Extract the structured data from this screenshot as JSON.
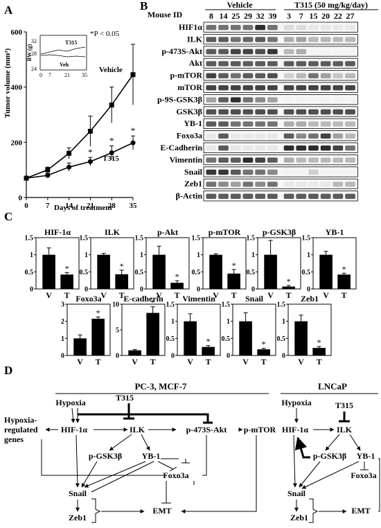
{
  "panels": {
    "A": "A",
    "B": "B",
    "C": "C",
    "D": "D"
  },
  "panel_a": {
    "ylabel": "Tumor volume (mm³)",
    "xlabel": "Days of treatment",
    "pvalue": "*P < 0.05",
    "vehicle_label": "Vehicle",
    "t315_label": "T315",
    "inset": {
      "ylabel": "BW (g)",
      "t315_label": "T315",
      "veh_label": "Veh",
      "y_ticks": [
        "24",
        "28",
        "32"
      ],
      "x_ticks": [
        "0",
        "7",
        "21",
        "35"
      ]
    }
  },
  "chart_data": [
    {
      "type": "line",
      "x": [
        0,
        7,
        14,
        21,
        28,
        35
      ],
      "xlim": [
        0,
        35
      ],
      "ylim": [
        0,
        600
      ],
      "x_ticks": [
        "0",
        "7",
        "14",
        "21",
        "28",
        "35"
      ],
      "y_ticks": [
        "0",
        "200",
        "400",
        "600"
      ],
      "xlabel": "Days of treatment",
      "ylabel": "Tumor volume (mm³)",
      "series": [
        {
          "name": "Vehicle",
          "marker": "square",
          "values": [
            70,
            100,
            160,
            240,
            335,
            445
          ],
          "errors": [
            5,
            10,
            20,
            55,
            65,
            110
          ]
        },
        {
          "name": "T315",
          "marker": "circle",
          "values": [
            70,
            80,
            110,
            130,
            162,
            198
          ],
          "errors": [
            5,
            8,
            15,
            15,
            25,
            25
          ]
        }
      ],
      "significant_x": [
        21,
        28,
        35
      ]
    },
    {
      "type": "bar",
      "categories": [
        "V",
        "T"
      ],
      "ylim": [
        0,
        1.5
      ],
      "y_ticks": [
        "0",
        "0.5",
        "1",
        "1.5"
      ],
      "charts": [
        {
          "title": "HIF-1α",
          "values": [
            1.0,
            0.42
          ],
          "errors": [
            0.2,
            0.06
          ],
          "significant": "T"
        },
        {
          "title": "ILK",
          "values": [
            1.0,
            0.43
          ],
          "errors": [
            0.04,
            0.12
          ],
          "significant": "T"
        },
        {
          "title": "p-Akt",
          "values": [
            1.0,
            0.18
          ],
          "errors": [
            0.25,
            0.06
          ],
          "significant": "T"
        },
        {
          "title": "p-mTOR",
          "values": [
            1.0,
            0.45
          ],
          "errors": [
            0.03,
            0.12
          ],
          "significant": "T"
        },
        {
          "title": "p-GSK3β",
          "values": [
            1.0,
            0.07
          ],
          "errors": [
            0.42,
            0.03
          ],
          "significant": "T"
        },
        {
          "title": "YB-1",
          "values": [
            1.0,
            0.42
          ],
          "errors": [
            0.1,
            0.04
          ],
          "significant": "T"
        }
      ]
    },
    {
      "type": "bar",
      "categories": [
        "V",
        "T"
      ],
      "charts": [
        {
          "title": "Foxo3a",
          "values": [
            1.0,
            2.15
          ],
          "errors": [
            0.2,
            0.1
          ],
          "ylim": [
            0,
            3
          ],
          "y_ticks": [
            "0",
            "1",
            "2",
            "3"
          ],
          "significant": "T"
        },
        {
          "title": "E-cadherin",
          "values": [
            1.0,
            8.3
          ],
          "errors": [
            0.15,
            1.2
          ],
          "ylim": [
            0,
            10
          ],
          "y_ticks": [
            "0",
            "5",
            "10"
          ],
          "significant": "T"
        },
        {
          "title": "Vimentin",
          "values": [
            1.0,
            0.25
          ],
          "errors": [
            0.22,
            0.04
          ],
          "ylim": [
            0,
            1.5
          ],
          "y_ticks": [
            "0",
            "0.5",
            "1",
            "1.5"
          ],
          "significant": "T"
        },
        {
          "title": "Snail",
          "values": [
            1.0,
            0.18
          ],
          "errors": [
            0.25,
            0.03
          ],
          "ylim": [
            0,
            1.5
          ],
          "y_ticks": [
            "0",
            "0.5",
            "1",
            "1.5"
          ],
          "significant": "T"
        },
        {
          "title": "Zeb1",
          "values": [
            1.0,
            0.22
          ],
          "errors": [
            0.18,
            0.04
          ],
          "ylim": [
            0,
            1.5
          ],
          "y_ticks": [
            "0",
            "0.5",
            "1",
            "1.5"
          ],
          "significant": "T"
        }
      ]
    }
  ],
  "panel_b": {
    "mouse_id_label": "Mouse ID",
    "vehicle_label": "Vehicle",
    "t315_label": "T315 (50 mg/kg/day)",
    "vehicle_ids": [
      "8",
      "14",
      "25",
      "29",
      "32",
      "39"
    ],
    "t315_ids": [
      "3",
      "7",
      "15",
      "20",
      "22",
      "27"
    ],
    "rows": [
      "HIF1α",
      "ILK",
      "p-473S-Akt",
      "Akt",
      "p-mTOR",
      "mTOR",
      "p-9S-GSK3β",
      "GSK3β",
      "YB-1",
      "Foxo3a",
      "E-Cadherin",
      "Vimentin",
      "Snail",
      "Zeb1",
      "β-Actin"
    ],
    "band_intensity": [
      [
        0.6,
        0.6,
        0.6,
        0.6,
        0.9,
        0.6,
        0.15,
        0.15,
        0.1,
        0.1,
        0.1,
        0.1
      ],
      [
        0.7,
        0.7,
        0.6,
        0.65,
        0.7,
        0.6,
        0.35,
        0.4,
        0.3,
        0.3,
        0.3,
        0.3
      ],
      [
        0.7,
        0.7,
        0.8,
        0.8,
        0.75,
        0.85,
        0.3,
        0.35,
        0.05,
        0.05,
        0.05,
        0.05
      ],
      [
        0.7,
        0.7,
        0.7,
        0.7,
        0.7,
        0.7,
        0.7,
        0.7,
        0.7,
        0.7,
        0.7,
        0.7
      ],
      [
        0.8,
        0.7,
        0.6,
        0.7,
        0.7,
        0.75,
        0.2,
        0.3,
        0.6,
        0.4,
        0.25,
        0.3
      ],
      [
        0.8,
        0.8,
        0.8,
        0.8,
        0.8,
        0.8,
        0.8,
        0.8,
        0.8,
        0.8,
        0.8,
        0.8
      ],
      [
        0.4,
        0.7,
        0.9,
        0.6,
        0.5,
        0.4,
        0.05,
        0.05,
        0.05,
        0.05,
        0.05,
        0.05
      ],
      [
        0.75,
        0.75,
        0.75,
        0.75,
        0.75,
        0.75,
        0.75,
        0.75,
        0.75,
        0.75,
        0.75,
        0.75
      ],
      [
        0.7,
        0.7,
        0.6,
        0.6,
        0.6,
        0.6,
        0.35,
        0.35,
        0.3,
        0.3,
        0.3,
        0.3
      ],
      [
        0.1,
        0.7,
        0.1,
        0.1,
        0.1,
        0.1,
        0.7,
        0.5,
        0.6,
        0.8,
        0.4,
        0.3
      ],
      [
        0.1,
        0.7,
        0.1,
        0.1,
        0.1,
        0.1,
        0.9,
        0.9,
        0.9,
        0.9,
        0.8,
        0.6
      ],
      [
        0.6,
        0.7,
        0.7,
        0.9,
        0.8,
        0.7,
        0.35,
        0.3,
        0.3,
        0.3,
        0.3,
        0.3
      ],
      [
        0.85,
        0.85,
        0.7,
        0.6,
        0.6,
        0.5,
        0.05,
        0.05,
        0.2,
        0.05,
        0.05,
        0.05
      ],
      [
        0.6,
        0.5,
        0.4,
        0.6,
        0.5,
        0.6,
        0.1,
        0.1,
        0.1,
        0.1,
        0.3,
        0.3
      ],
      [
        0.7,
        0.7,
        0.7,
        0.7,
        0.7,
        0.7,
        0.7,
        0.7,
        0.7,
        0.7,
        0.7,
        0.7
      ]
    ]
  },
  "panel_d": {
    "left_title": "PC-3, MCF-7",
    "right_title": "LNCaP",
    "hypoxia": "Hypoxia",
    "t315": "T315",
    "hypoxia_genes_1": "Hypoxia-",
    "hypoxia_genes_2": "regulated",
    "hypoxia_genes_3": "genes",
    "hif": "HIF-1α",
    "ilk": "ILK",
    "pakt": "p-473S-Akt",
    "pmtor": "p-mTOR",
    "pgsk": "p-GSK3β",
    "yb1": "YB-1",
    "foxo": "Foxo3a",
    "snail": "Snail",
    "zeb1": "Zeb1",
    "emt": "EMT"
  }
}
